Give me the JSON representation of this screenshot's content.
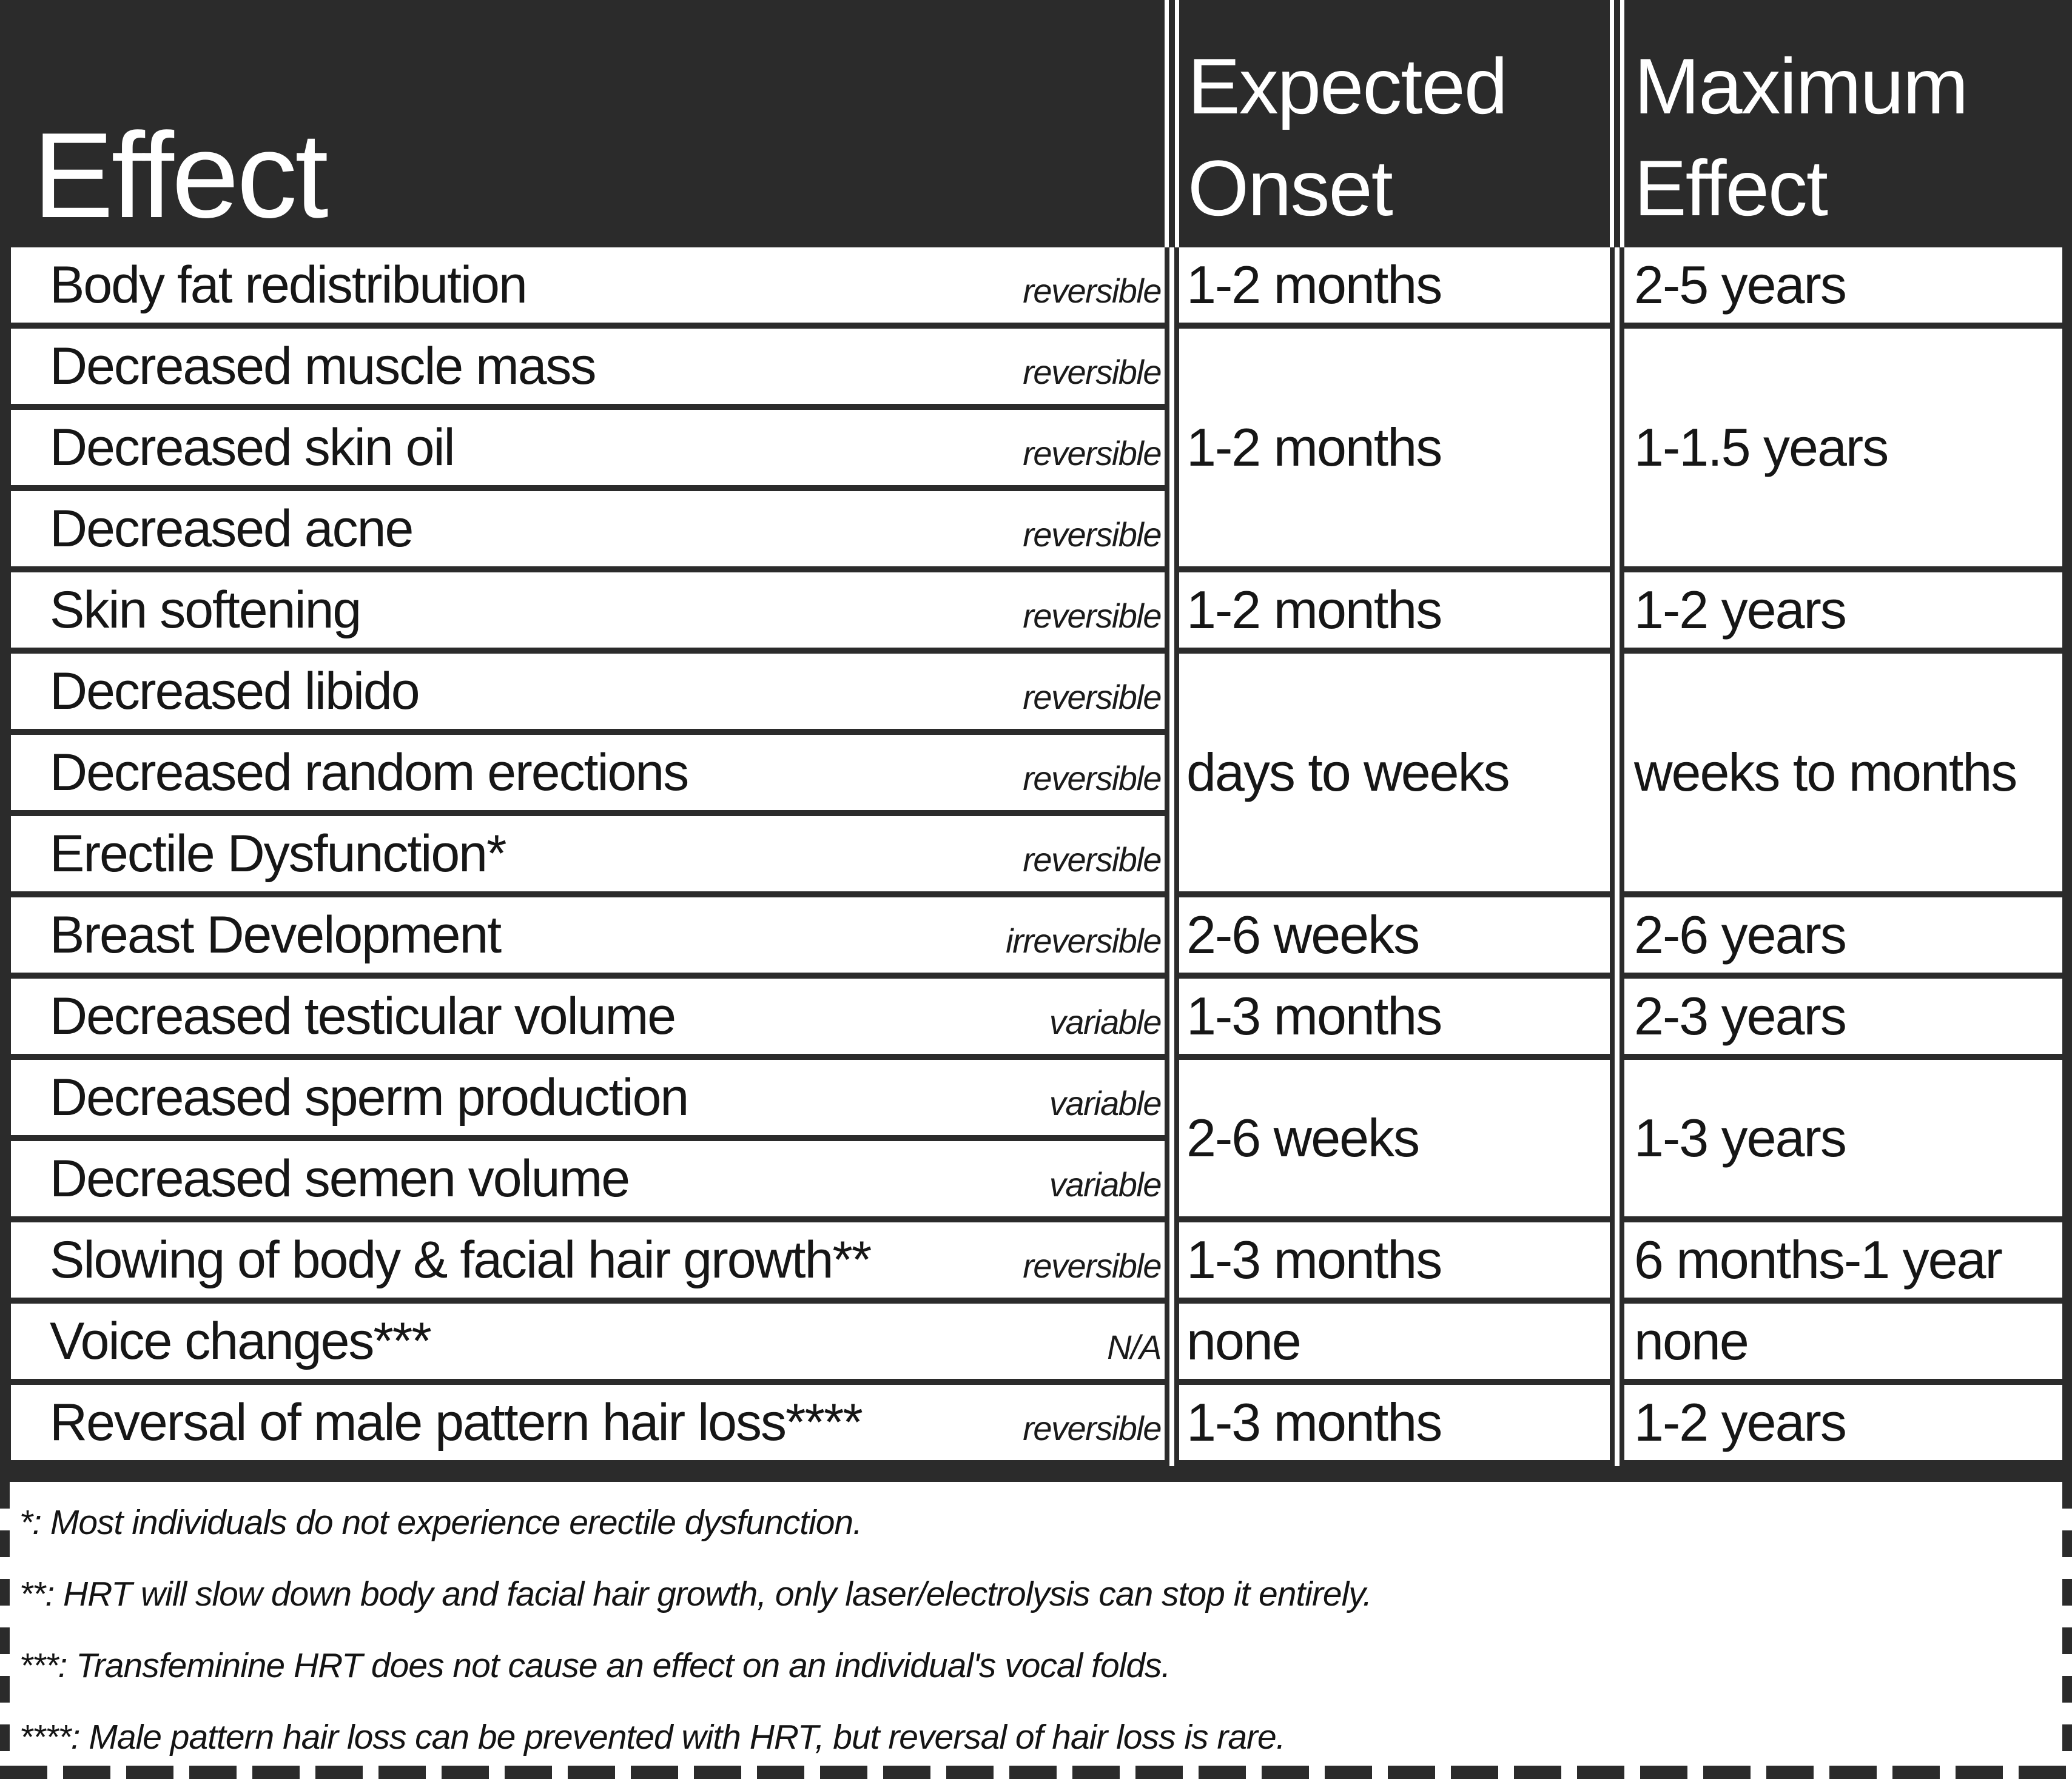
{
  "palette": {
    "dark": "#2b2b2b",
    "white": "#ffffff",
    "text": "#161616"
  },
  "header": {
    "effect": "Effect",
    "expected_onset": "Expected Onset",
    "maximum_effect": "Maximum Effect"
  },
  "rows": [
    {
      "effect": "Body fat redistribution",
      "tag": "reversible"
    },
    {
      "effect": "Decreased muscle mass",
      "tag": "reversible"
    },
    {
      "effect": "Decreased skin oil",
      "tag": "reversible"
    },
    {
      "effect": "Decreased acne",
      "tag": "reversible"
    },
    {
      "effect": "Skin softening",
      "tag": "reversible"
    },
    {
      "effect": "Decreased libido",
      "tag": "reversible"
    },
    {
      "effect": "Decreased random erections",
      "tag": "reversible"
    },
    {
      "effect": "Erectile Dysfunction*",
      "tag": "reversible"
    },
    {
      "effect": "Breast Development",
      "tag": "irreversible"
    },
    {
      "effect": "Decreased testicular volume",
      "tag": "variable"
    },
    {
      "effect": "Decreased sperm production",
      "tag": "variable"
    },
    {
      "effect": "Decreased semen volume",
      "tag": "variable"
    },
    {
      "effect": "Slowing of body & facial hair growth**",
      "tag": "reversible"
    },
    {
      "effect": "Voice changes***",
      "tag": "N/A"
    },
    {
      "effect": "Reversal of male pattern hair loss****",
      "tag": "reversible"
    }
  ],
  "spans": [
    {
      "onset": "1-2 months",
      "max": "2-5 years"
    },
    {
      "onset": "1-2 months",
      "max": "1-1.5 years"
    },
    {
      "onset": "1-2 months",
      "max": "1-2 years"
    },
    {
      "onset": "days to weeks",
      "max": "weeks to months"
    },
    {
      "onset": "2-6 weeks",
      "max": "2-6 years"
    },
    {
      "onset": "1-3 months",
      "max": "2-3 years"
    },
    {
      "onset": "2-6 weeks",
      "max": "1-3 years"
    },
    {
      "onset": "1-3 months",
      "max": "6 months-1 year"
    },
    {
      "onset": "none",
      "max": "none"
    },
    {
      "onset": "1-3 months",
      "max": "1-2 years"
    }
  ],
  "footnotes": [
    "*: Most individuals do not experience erectile dysfunction.",
    "**: HRT will slow down body and facial hair growth, only laser/electrolysis can stop it entirely.",
    "***: Transfeminine HRT does not cause an effect on an individual's vocal folds.",
    "****: Male pattern hair loss can be prevented with HRT, but reversal of hair loss is rare."
  ]
}
